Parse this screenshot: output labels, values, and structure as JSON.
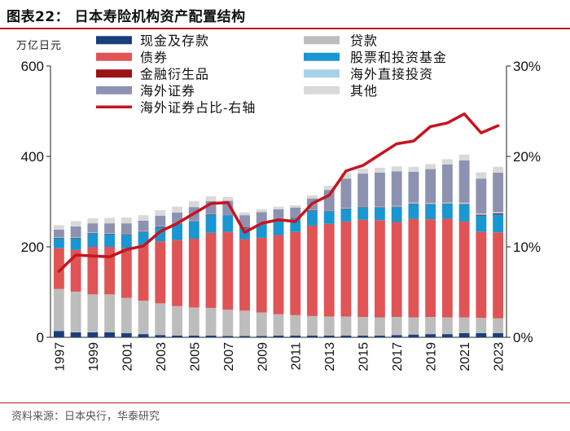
{
  "figure": {
    "title": "图表22：  日本寿险机构资产配置结构",
    "source": "资料来源：日本央行，华泰研究"
  },
  "chart_data": {
    "type": "bar",
    "stacked": true,
    "title": "日本寿险机构资产配置结构",
    "ylabel_left": "万亿日元",
    "ylim_left": [
      0,
      600
    ],
    "yticks_left": [
      "0",
      "200",
      "400",
      "600"
    ],
    "ylim_right": [
      0,
      0.3
    ],
    "yticks_right": [
      "0%",
      "10%",
      "20%",
      "30%"
    ],
    "legend_placement": "top",
    "categories": [
      "1997",
      "1998",
      "1999",
      "2000",
      "2001",
      "2002",
      "2003",
      "2004",
      "2005",
      "2006",
      "2007",
      "2008",
      "2009",
      "2010",
      "2011",
      "2012",
      "2013",
      "2014",
      "2015",
      "2016",
      "2017",
      "2018",
      "2019",
      "2020",
      "2021",
      "2022",
      "2023"
    ],
    "tick_labels": [
      "1997",
      "1999",
      "2001",
      "2003",
      "2005",
      "2007",
      "2009",
      "2011",
      "2013",
      "2015",
      "2017",
      "2019",
      "2021",
      "2023"
    ],
    "series": [
      {
        "name": "现金及存款",
        "color": "#1a3f7a",
        "values": [
          14,
          11,
          11,
          11,
          9,
          7,
          5,
          4,
          4,
          4,
          3,
          3,
          3,
          4,
          4,
          4,
          4,
          4,
          4,
          4,
          5,
          6,
          7,
          7,
          9,
          9,
          9
        ]
      },
      {
        "name": "贷款",
        "color": "#bdbdbd",
        "values": [
          93,
          90,
          84,
          84,
          78,
          74,
          70,
          65,
          62,
          61,
          58,
          56,
          52,
          47,
          45,
          43,
          42,
          42,
          41,
          40,
          40,
          38,
          38,
          37,
          35,
          34,
          33
        ]
      },
      {
        "name": "债券",
        "color": "#e05456",
        "values": [
          90,
          92,
          105,
          105,
          110,
          122,
          137,
          146,
          152,
          166,
          172,
          158,
          165,
          175,
          184,
          200,
          205,
          210,
          215,
          215,
          210,
          218,
          216,
          218,
          212,
          190,
          190
        ]
      },
      {
        "name": "股票和投资基金",
        "color": "#1a96d1",
        "values": [
          22,
          26,
          30,
          28,
          30,
          30,
          32,
          36,
          38,
          40,
          37,
          25,
          30,
          30,
          30,
          33,
          28,
          28,
          28,
          28,
          33,
          33,
          33,
          33,
          38,
          36,
          40
        ]
      },
      {
        "name": "金融衍生品",
        "color": "#9b1217",
        "values": [
          1,
          1,
          1,
          1,
          1,
          1,
          1,
          1,
          1,
          1,
          1,
          2,
          1,
          1,
          1,
          1,
          1,
          1,
          1,
          1,
          1,
          1,
          1,
          1,
          1,
          2,
          2
        ]
      },
      {
        "name": "海外直接投资",
        "color": "#a9d2e8",
        "values": [
          1,
          1,
          1,
          1,
          1,
          1,
          1,
          1,
          1,
          1,
          1,
          1,
          1,
          1,
          1,
          1,
          1,
          1,
          1,
          1,
          2,
          2,
          2,
          2,
          3,
          3,
          3
        ]
      },
      {
        "name": "海外证券",
        "color": "#8c92b0",
        "values": [
          17,
          24,
          20,
          22,
          23,
          23,
          23,
          23,
          30,
          28,
          30,
          25,
          25,
          25,
          22,
          25,
          45,
          65,
          72,
          75,
          76,
          68,
          75,
          84,
          93,
          77,
          87
        ]
      },
      {
        "name": "其他",
        "color": "#d9d9d9",
        "values": [
          10,
          12,
          11,
          12,
          13,
          12,
          12,
          13,
          13,
          11,
          8,
          6,
          6,
          6,
          5,
          7,
          9,
          12,
          11,
          11,
          11,
          11,
          11,
          12,
          13,
          14,
          13
        ]
      }
    ],
    "line": {
      "name": "海外证券占比-右轴",
      "color": "#c8141f",
      "axis": "right",
      "values": [
        0.073,
        0.091,
        0.09,
        0.089,
        0.097,
        0.101,
        0.117,
        0.126,
        0.137,
        0.148,
        0.149,
        0.116,
        0.126,
        0.13,
        0.128,
        0.148,
        0.157,
        0.184,
        0.19,
        0.202,
        0.214,
        0.217,
        0.233,
        0.237,
        0.247,
        0.226,
        0.234
      ]
    },
    "legend_order": [
      "现金及存款",
      "贷款",
      "债券",
      "股票和投资基金",
      "金融衍生品",
      "海外直接投资",
      "海外证券",
      "其他",
      "海外证券占比-右轴"
    ]
  }
}
